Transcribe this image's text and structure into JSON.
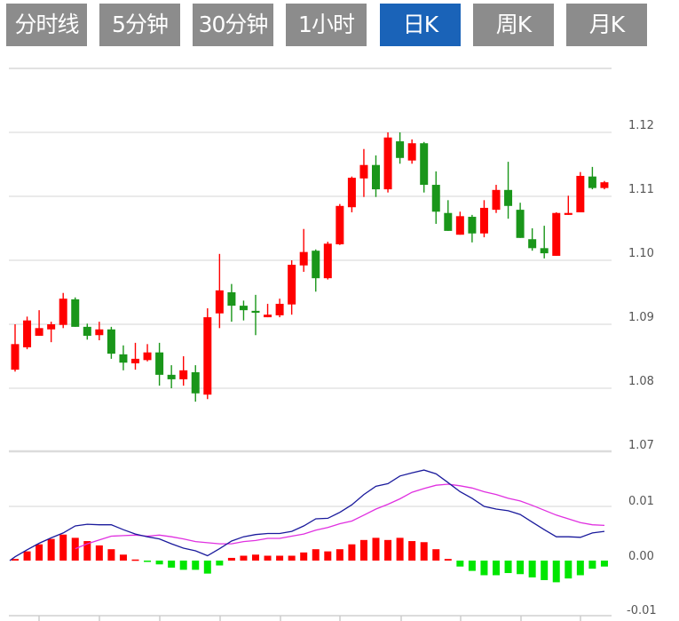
{
  "tabs": [
    {
      "label": "分时线",
      "active": false
    },
    {
      "label": "5分钟",
      "active": false
    },
    {
      "label": "30分钟",
      "active": false
    },
    {
      "label": "1小时",
      "active": false
    },
    {
      "label": "日K",
      "active": true
    },
    {
      "label": "周K",
      "active": false
    },
    {
      "label": "月K",
      "active": false
    }
  ],
  "colors": {
    "tab_bg": "#8c8c8c",
    "tab_active_bg": "#1a63b8",
    "up": "#ff0000",
    "down": "#1a961a",
    "hist_up": "#ff0000",
    "hist_down": "#00e600",
    "dif": "#1a1a9c",
    "dea": "#e030e0",
    "grid": "#dddddd"
  },
  "chart_data": [
    {
      "type": "candlestick",
      "title": "",
      "grid": true,
      "ylim": [
        1.07,
        1.13
      ],
      "yticks": [
        "1.12",
        "1.11",
        "1.10",
        "1.09",
        "1.08",
        "1.07"
      ],
      "ohlc_fields": [
        "open",
        "close",
        "high",
        "low"
      ],
      "candles": [
        [
          1.0829,
          1.0869,
          1.09,
          1.0826
        ],
        [
          1.0864,
          1.0906,
          1.0912,
          1.0861
        ],
        [
          1.0882,
          1.0894,
          1.0922,
          1.0882
        ],
        [
          1.0892,
          1.09,
          1.0904,
          1.0872
        ],
        [
          1.0899,
          1.094,
          1.0949,
          1.0894
        ],
        [
          1.0939,
          1.0896,
          1.0942,
          1.0896
        ],
        [
          1.0896,
          1.0882,
          1.0901,
          1.0876
        ],
        [
          1.0883,
          1.0892,
          1.0904,
          1.0875
        ],
        [
          1.0892,
          1.0854,
          1.0896,
          1.0846
        ],
        [
          1.0853,
          1.084,
          1.0867,
          1.0828
        ],
        [
          1.0839,
          1.0846,
          1.0871,
          1.0829
        ],
        [
          1.0844,
          1.0856,
          1.0869,
          1.0842
        ],
        [
          1.0856,
          1.0821,
          1.0871,
          1.0804
        ],
        [
          1.0821,
          1.0814,
          1.0836,
          1.08
        ],
        [
          1.0814,
          1.0828,
          1.085,
          1.0804
        ],
        [
          1.0825,
          1.0792,
          1.0836,
          1.0779
        ],
        [
          1.079,
          1.0911,
          1.0925,
          1.0783
        ],
        [
          1.0917,
          1.0953,
          1.101,
          1.0894
        ],
        [
          1.095,
          1.0929,
          1.0963,
          1.0904
        ],
        [
          1.0929,
          1.0922,
          1.0937,
          1.0906
        ],
        [
          1.0921,
          1.0918,
          1.0946,
          1.0883
        ],
        [
          1.0911,
          1.0915,
          1.0932,
          1.0911
        ],
        [
          1.0914,
          1.0932,
          1.094,
          1.0911
        ],
        [
          1.0931,
          1.0993,
          1.1,
          1.0915
        ],
        [
          1.0992,
          1.1013,
          1.1049,
          1.0982
        ],
        [
          1.1015,
          1.0972,
          1.1017,
          1.0951
        ],
        [
          1.0972,
          1.1026,
          1.1029,
          1.097
        ],
        [
          1.1025,
          1.1085,
          1.1088,
          1.1024
        ],
        [
          1.1083,
          1.1129,
          1.1131,
          1.1075
        ],
        [
          1.1128,
          1.1149,
          1.1174,
          1.1099
        ],
        [
          1.1149,
          1.1111,
          1.1164,
          1.1099
        ],
        [
          1.1111,
          1.1192,
          1.12,
          1.1106
        ],
        [
          1.1186,
          1.116,
          1.12,
          1.1151
        ],
        [
          1.1156,
          1.1183,
          1.1189,
          1.1151
        ],
        [
          1.1183,
          1.1118,
          1.1185,
          1.1106
        ],
        [
          1.1118,
          1.1076,
          1.1139,
          1.1057
        ],
        [
          1.1074,
          1.1046,
          1.1094,
          1.1046
        ],
        [
          1.104,
          1.1069,
          1.1076,
          1.104
        ],
        [
          1.1068,
          1.1042,
          1.1071,
          1.1028
        ],
        [
          1.1042,
          1.1082,
          1.1094,
          1.1036
        ],
        [
          1.1079,
          1.111,
          1.1118,
          1.1074
        ],
        [
          1.111,
          1.1085,
          1.1154,
          1.1065
        ],
        [
          1.1079,
          1.1035,
          1.109,
          1.1035
        ],
        [
          1.1033,
          1.1019,
          1.105,
          1.1015
        ],
        [
          1.1019,
          1.1011,
          1.1054,
          1.1003
        ],
        [
          1.1007,
          1.1074,
          1.1075,
          1.1007
        ],
        [
          1.1071,
          1.1074,
          1.1101,
          1.1071
        ],
        [
          1.1075,
          1.1132,
          1.1138,
          1.1075
        ],
        [
          1.1131,
          1.1113,
          1.1146,
          1.1111
        ],
        [
          1.1113,
          1.1122,
          1.1124,
          1.1111
        ]
      ]
    },
    {
      "type": "macd",
      "title": "",
      "grid": true,
      "ylim": [
        -0.01,
        0.0125
      ],
      "yticks": [
        "0.01",
        "0.00",
        "-0.01"
      ],
      "histogram": [
        0.0003,
        0.0017,
        0.003,
        0.004,
        0.0048,
        0.0042,
        0.0036,
        0.0028,
        0.0021,
        0.0011,
        0.0002,
        -0.0001,
        -0.0007,
        -0.0013,
        -0.0017,
        -0.0017,
        -0.0024,
        -0.0009,
        0.0005,
        0.0009,
        0.0011,
        0.0009,
        0.0009,
        0.0009,
        0.0015,
        0.0021,
        0.0017,
        0.0021,
        0.003,
        0.0038,
        0.0042,
        0.0038,
        0.0042,
        0.0036,
        0.0034,
        0.0021,
        0.0003,
        -0.0011,
        -0.0019,
        -0.0027,
        -0.0027,
        -0.0023,
        -0.0025,
        -0.0031,
        -0.0036,
        -0.004,
        -0.0033,
        -0.0027,
        -0.0015,
        -0.0011
      ],
      "dif": [
        0.0007,
        0.002,
        0.0032,
        0.0042,
        0.0051,
        0.0064,
        0.0067,
        0.0066,
        0.0066,
        0.0057,
        0.0049,
        0.0044,
        0.004,
        0.0031,
        0.0023,
        0.0018,
        0.0009,
        0.0022,
        0.0036,
        0.0044,
        0.0048,
        0.005,
        0.005,
        0.0054,
        0.0064,
        0.0077,
        0.0078,
        0.0089,
        0.0103,
        0.0122,
        0.0137,
        0.0142,
        0.0156,
        0.0162,
        0.0167,
        0.016,
        0.0144,
        0.0127,
        0.0115,
        0.01,
        0.0095,
        0.0092,
        0.0085,
        0.0071,
        0.0057,
        0.0044,
        0.0044,
        0.0043,
        0.0051,
        0.0054
      ],
      "dea": [
        null,
        null,
        null,
        null,
        null,
        0.0022,
        0.0031,
        0.0038,
        0.0045,
        0.0046,
        0.0047,
        0.0045,
        0.0047,
        0.0044,
        0.004,
        0.0035,
        0.0033,
        0.0031,
        0.0031,
        0.0035,
        0.0037,
        0.0041,
        0.0041,
        0.0045,
        0.0049,
        0.0056,
        0.0061,
        0.0068,
        0.0073,
        0.0084,
        0.0095,
        0.0104,
        0.0114,
        0.0126,
        0.0133,
        0.0139,
        0.0141,
        0.0138,
        0.0134,
        0.0127,
        0.0122,
        0.0115,
        0.011,
        0.0102,
        0.0093,
        0.0084,
        0.0077,
        0.007,
        0.0066,
        0.0065
      ]
    }
  ]
}
